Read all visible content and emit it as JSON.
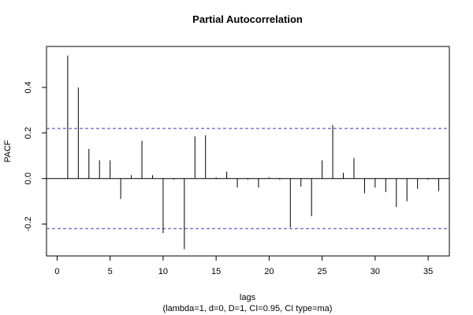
{
  "chart_data": {
    "type": "bar",
    "title": "Partial Autocorrelation",
    "xlabel": "lags",
    "subtitle": "(lambda=1, d=0, D=1, CI=0.95, CI type=ma)",
    "ylabel": "PACF",
    "xlim": [
      -1,
      37
    ],
    "ylim": [
      -0.34,
      0.58
    ],
    "x_ticks": [
      0,
      5,
      10,
      15,
      20,
      25,
      30,
      35
    ],
    "x_tick_labels": [
      "0",
      "5",
      "10",
      "15",
      "20",
      "25",
      "30",
      "35"
    ],
    "y_ticks": [
      -0.2,
      0.0,
      0.2,
      0.4
    ],
    "y_tick_labels": [
      "-0.2",
      "0.0",
      "0.2",
      "0.4"
    ],
    "confidence_band": [
      -0.22,
      0.22
    ],
    "lags": [
      1,
      2,
      3,
      4,
      5,
      6,
      7,
      8,
      9,
      10,
      11,
      12,
      13,
      14,
      15,
      16,
      17,
      18,
      19,
      20,
      21,
      22,
      23,
      24,
      25,
      26,
      27,
      28,
      29,
      30,
      31,
      32,
      33,
      34,
      35,
      36
    ],
    "values": [
      0.54,
      0.4,
      0.13,
      0.08,
      0.08,
      -0.09,
      0.015,
      0.165,
      0.015,
      -0.24,
      -0.005,
      -0.31,
      0.185,
      0.19,
      0.005,
      0.03,
      -0.04,
      -0.005,
      -0.04,
      0.005,
      -0.005,
      -0.215,
      -0.035,
      -0.165,
      0.08,
      0.235,
      0.025,
      0.09,
      -0.065,
      -0.04,
      -0.06,
      -0.125,
      -0.1,
      -0.045,
      -0.005,
      -0.055
    ],
    "colors": {
      "band": "#3b3bb8",
      "axis": "#000000",
      "spike": "#000000"
    },
    "grid": false
  }
}
